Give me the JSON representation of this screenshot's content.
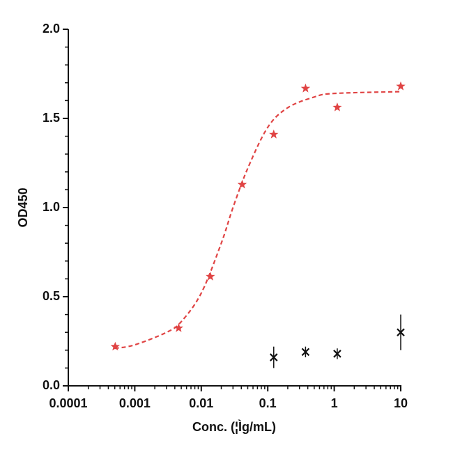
{
  "chart_data": {
    "type": "scatter",
    "xlabel": "Conc. (¦Ìg/mL)",
    "ylabel": "OD450",
    "xscale": "log",
    "xlim": [
      0.0001,
      10
    ],
    "xticks": [
      0.0001,
      0.001,
      0.01,
      0.1,
      1,
      10
    ],
    "ylim": [
      0,
      2
    ],
    "yticks": [
      {
        "value": 0,
        "label": "0.0"
      },
      0.5,
      {
        "value": 1,
        "label": "1.0"
      },
      1.5,
      {
        "value": 2,
        "label": "2.0"
      }
    ],
    "minor_ticks": true,
    "series": [
      {
        "color": "#e04444",
        "marker": "star",
        "x": [
          0.000508,
          0.00457,
          0.0137,
          0.0412,
          0.123,
          0.37,
          1.11,
          10
        ],
        "values": [
          0.22,
          0.324,
          0.613,
          1.129,
          1.41,
          1.668,
          1.562,
          1.68
        ]
      },
      {
        "color": "#e04444",
        "marker": "dashed-line",
        "x": [
          0.0005,
          0.001,
          0.003,
          0.005,
          0.01,
          0.02,
          0.03,
          0.05,
          0.1,
          0.2,
          0.5,
          1,
          10
        ],
        "values": [
          0.21,
          0.23,
          0.3,
          0.36,
          0.52,
          0.8,
          1.0,
          1.22,
          1.45,
          1.56,
          1.62,
          1.64,
          1.65
        ]
      },
      {
        "color": "#111111",
        "marker": "x",
        "x": [
          0.123,
          0.37,
          1.11,
          10
        ],
        "values": [
          0.16,
          0.19,
          0.18,
          0.3
        ],
        "errors": [
          0.06,
          0.03,
          0.03,
          0.1
        ]
      }
    ]
  }
}
